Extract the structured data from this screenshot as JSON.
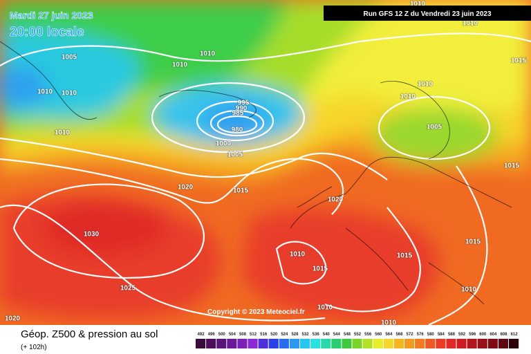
{
  "header": {
    "date": "Mardi 27 juin 2023",
    "time": "20:00 locale",
    "run": "Run GFS 12 Z du Vendredi 23 juin 2023"
  },
  "isobar_labels": [
    1010,
    1010,
    1005,
    1010,
    1010,
    1015,
    1010,
    1010,
    1010,
    1010,
    995,
    990,
    985,
    980,
    1005,
    1010,
    1000,
    1005,
    1015,
    1020,
    1015,
    1020,
    1030,
    1015,
    1010,
    1015,
    1015,
    1025,
    1010,
    1010,
    1020,
    1010
  ],
  "copyright": "Copyright © 2023 Meteociel.fr",
  "footer": {
    "title": "Géop. Z500 & pression au sol",
    "subtitle": "(+ 102h)"
  },
  "legend": {
    "values": [
      492,
      496,
      500,
      504,
      508,
      512,
      516,
      520,
      524,
      528,
      532,
      536,
      540,
      544,
      548,
      552,
      556,
      560,
      564,
      568,
      572,
      576,
      580,
      584,
      588,
      592,
      596,
      600,
      604,
      608,
      612
    ]
  }
}
